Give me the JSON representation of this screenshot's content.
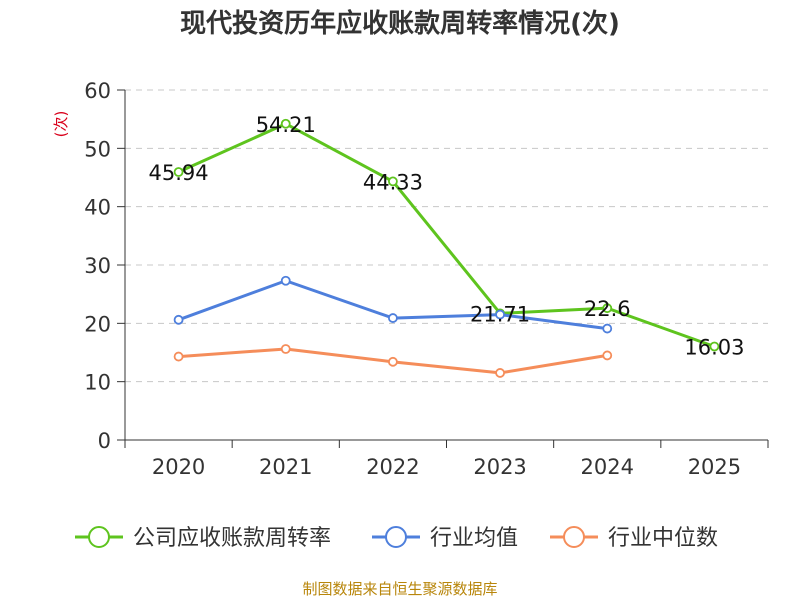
{
  "chart_data": {
    "type": "line",
    "title": "现代投资历年应收账款周转率情况(次)",
    "ylabel": "(次)",
    "xlabel": "",
    "categories": [
      "2020",
      "2021",
      "2022",
      "2023",
      "2024",
      "2025"
    ],
    "ylim": [
      0,
      60
    ],
    "yticks": [
      0,
      10,
      20,
      30,
      40,
      50,
      60
    ],
    "grid": true,
    "legend_position": "bottom",
    "series": [
      {
        "name": "公司应收账款周转率",
        "color": "#5ec41e",
        "values": [
          45.94,
          54.21,
          44.33,
          21.71,
          22.6,
          16.03
        ],
        "labels": [
          "45.94",
          "54.21",
          "44.33",
          "21.71",
          "22.6",
          "16.03"
        ]
      },
      {
        "name": "行业均值",
        "color": "#4e7fdc",
        "values": [
          20.6,
          27.3,
          20.9,
          21.5,
          19.1,
          null
        ]
      },
      {
        "name": "行业中位数",
        "color": "#f58d5a",
        "values": [
          14.3,
          15.6,
          13.4,
          11.5,
          14.5,
          null
        ]
      }
    ],
    "source": "制图数据来自恒生聚源数据库"
  }
}
